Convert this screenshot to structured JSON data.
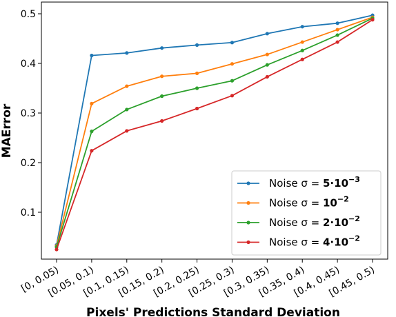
{
  "chart_data": {
    "type": "line",
    "xlabel": "Pixels' Predictions Standard Deviation",
    "ylabel": "MAError",
    "categories": [
      "[0, 0.05)",
      "[0.05, 0.1)",
      "[0.1, 0.15)",
      "[0.15, 0.2)",
      "[0.2, 0.25)",
      "[0.25, 0.3)",
      "[0.3, 0.35)",
      "[0.35, 0.4)",
      "[0.4, 0.45)",
      "[0.45, 0.5)"
    ],
    "ylim": [
      0.0,
      0.52
    ],
    "yticks": [
      0.1,
      0.2,
      0.3,
      0.4,
      0.5
    ],
    "ytick_labels": [
      "0.1",
      "0.2",
      "0.3",
      "0.4",
      "0.5"
    ],
    "legend_position": "lower right",
    "series": [
      {
        "legend_prefix": "Noise σ = ",
        "legend_value": "5·10",
        "legend_exp": "−3",
        "color": "#1f77b4",
        "values": [
          0.034,
          0.416,
          0.421,
          0.431,
          0.437,
          0.442,
          0.46,
          0.474,
          0.481,
          0.497
        ]
      },
      {
        "legend_prefix": "Noise σ = ",
        "legend_value": "10",
        "legend_exp": "−2",
        "color": "#ff7f0e",
        "values": [
          0.032,
          0.319,
          0.354,
          0.374,
          0.38,
          0.399,
          0.418,
          0.443,
          0.468,
          0.493
        ]
      },
      {
        "legend_prefix": "Noise σ = ",
        "legend_value": "2·10",
        "legend_exp": "−2",
        "color": "#2ca02c",
        "values": [
          0.03,
          0.263,
          0.307,
          0.334,
          0.35,
          0.365,
          0.397,
          0.426,
          0.457,
          0.491
        ]
      },
      {
        "legend_prefix": "Noise σ = ",
        "legend_value": "4·10",
        "legend_exp": "−2",
        "color": "#d62728",
        "values": [
          0.025,
          0.224,
          0.264,
          0.284,
          0.309,
          0.335,
          0.373,
          0.408,
          0.443,
          0.488
        ]
      }
    ]
  }
}
